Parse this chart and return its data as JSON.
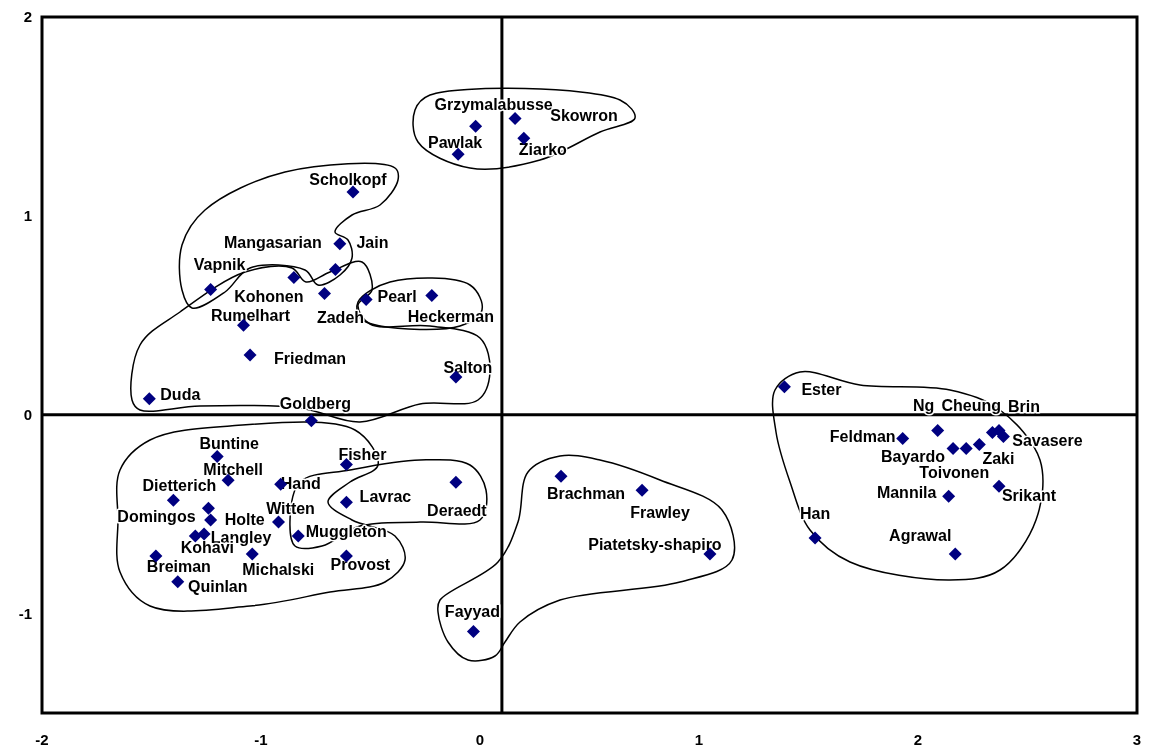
{
  "chart_data": {
    "type": "scatter",
    "xlim": [
      -2,
      3
    ],
    "ylim": [
      -1.5,
      2
    ],
    "xticks": [
      -2,
      -1,
      0,
      1,
      2,
      3
    ],
    "yticks": [
      -1,
      0,
      1,
      2
    ],
    "grid": false,
    "marker": "diamond",
    "ref_lines": [
      {
        "axis": "x",
        "value": 0.1,
        "color": "#000000"
      },
      {
        "axis": "y",
        "value": 0,
        "color": "#000000"
      }
    ],
    "series": [
      {
        "color": "#000080",
        "x": [
          -0.02,
          0.16,
          -0.1,
          0.2,
          -0.58,
          -0.64,
          -0.66,
          -1.23,
          -0.85,
          -0.71,
          -0.52,
          -0.22,
          -1.08,
          -1.05,
          -0.11,
          -1.51,
          1.39,
          -0.77,
          -1.2,
          -1.15,
          -0.91,
          -0.61,
          -1.4,
          -1.24,
          -0.61,
          -0.11,
          -1.23,
          -0.92,
          -0.83,
          -1.26,
          -1.3,
          -1.48,
          -1.04,
          -0.61,
          -1.38,
          -0.03,
          0.37,
          0.74,
          1.05,
          1.53,
          2.17,
          2.14,
          2.37,
          1.93,
          2.09,
          2.16,
          2.22,
          2.28,
          2.34,
          2.37,
          2.39
        ],
        "values": [
          1.45,
          1.49,
          1.31,
          1.39,
          1.12,
          0.86,
          0.73,
          0.63,
          0.69,
          0.61,
          0.58,
          0.6,
          0.45,
          0.3,
          0.19,
          0.08,
          0.14,
          -0.03,
          -0.21,
          -0.33,
          -0.35,
          -0.25,
          -0.43,
          -0.47,
          -0.44,
          -0.34,
          -0.53,
          -0.54,
          -0.61,
          -0.6,
          -0.61,
          -0.71,
          -0.7,
          -0.71,
          -0.84,
          -1.09,
          -0.31,
          -0.38,
          -0.7,
          -0.62,
          -0.7,
          -0.41,
          -0.36,
          -0.12,
          -0.08,
          -0.17,
          -0.17,
          -0.15,
          -0.09,
          -0.08,
          -0.11
        ]
      }
    ],
    "annotations": [
      {
        "text": "Grzymalabusse",
        "x": -0.02,
        "y": 1.45
      },
      {
        "text": "Skowron",
        "x": 0.16,
        "y": 1.49
      },
      {
        "text": "Pawlak",
        "x": -0.1,
        "y": 1.31
      },
      {
        "text": "Ziarko",
        "x": 0.2,
        "y": 1.39
      },
      {
        "text": "Scholkopf",
        "x": -0.58,
        "y": 1.12
      },
      {
        "text": "Mangasarian",
        "x": -0.64,
        "y": 0.86
      },
      {
        "text": "Jain",
        "x": -0.66,
        "y": 0.73
      },
      {
        "text": "Vapnik",
        "x": -1.23,
        "y": 0.63
      },
      {
        "text": "Kohonen",
        "x": -0.85,
        "y": 0.69
      },
      {
        "text": "Zadeh",
        "x": -0.71,
        "y": 0.61
      },
      {
        "text": "Pearl",
        "x": -0.52,
        "y": 0.58
      },
      {
        "text": "Heckerman",
        "x": -0.22,
        "y": 0.6
      },
      {
        "text": "Rumelhart",
        "x": -1.08,
        "y": 0.45
      },
      {
        "text": "Friedman",
        "x": -1.05,
        "y": 0.3
      },
      {
        "text": "Salton",
        "x": -0.11,
        "y": 0.19
      },
      {
        "text": "Duda",
        "x": -1.51,
        "y": 0.08
      },
      {
        "text": "Ester",
        "x": 1.39,
        "y": 0.14
      },
      {
        "text": "Goldberg",
        "x": -0.77,
        "y": -0.03
      },
      {
        "text": "Buntine",
        "x": -1.2,
        "y": -0.21
      },
      {
        "text": "Mitchell",
        "x": -1.15,
        "y": -0.33
      },
      {
        "text": "Hand",
        "x": -0.91,
        "y": -0.35
      },
      {
        "text": "Fisher",
        "x": -0.61,
        "y": -0.25
      },
      {
        "text": "Dietterich",
        "x": -1.4,
        "y": -0.43
      },
      {
        "text": "Domingos",
        "x": -1.24,
        "y": -0.47
      },
      {
        "text": "Lavrac",
        "x": -0.61,
        "y": -0.44
      },
      {
        "text": "Deraedt",
        "x": -0.11,
        "y": -0.34
      },
      {
        "text": "Holte",
        "x": -1.23,
        "y": -0.53
      },
      {
        "text": "Witten",
        "x": -0.92,
        "y": -0.54
      },
      {
        "text": "Muggleton",
        "x": -0.83,
        "y": -0.61
      },
      {
        "text": "Langley",
        "x": -1.26,
        "y": -0.6
      },
      {
        "text": "Kohavi",
        "x": -1.3,
        "y": -0.61
      },
      {
        "text": "Breiman",
        "x": -1.48,
        "y": -0.71
      },
      {
        "text": "Michalski",
        "x": -1.04,
        "y": -0.7
      },
      {
        "text": "Provost",
        "x": -0.61,
        "y": -0.71
      },
      {
        "text": "Quinlan",
        "x": -1.38,
        "y": -0.84
      },
      {
        "text": "Fayyad",
        "x": -0.03,
        "y": -1.09
      },
      {
        "text": "Brachman",
        "x": 0.37,
        "y": -0.31
      },
      {
        "text": "Frawley",
        "x": 0.74,
        "y": -0.38
      },
      {
        "text": "Piatetsky-shapiro",
        "x": 1.05,
        "y": -0.7
      },
      {
        "text": "Han",
        "x": 1.53,
        "y": -0.62
      },
      {
        "text": "Agrawal",
        "x": 2.17,
        "y": -0.7
      },
      {
        "text": "Mannila",
        "x": 2.14,
        "y": -0.41
      },
      {
        "text": "Srikant",
        "x": 2.37,
        "y": -0.36
      },
      {
        "text": "Feldman",
        "x": 1.93,
        "y": -0.12
      },
      {
        "text": "Ng",
        "x": 2.09,
        "y": -0.08
      },
      {
        "text": "Bayardo",
        "x": 2.16,
        "y": -0.17
      },
      {
        "text": "Cheung",
        "x": 2.22,
        "y": -0.17
      },
      {
        "text": "Toivonen",
        "x": 2.28,
        "y": -0.15
      },
      {
        "text": "Savasere",
        "x": 2.34,
        "y": -0.09
      },
      {
        "text": "Brin",
        "x": 2.37,
        "y": -0.08
      },
      {
        "text": "Zaki",
        "x": 2.39,
        "y": -0.11
      }
    ]
  }
}
